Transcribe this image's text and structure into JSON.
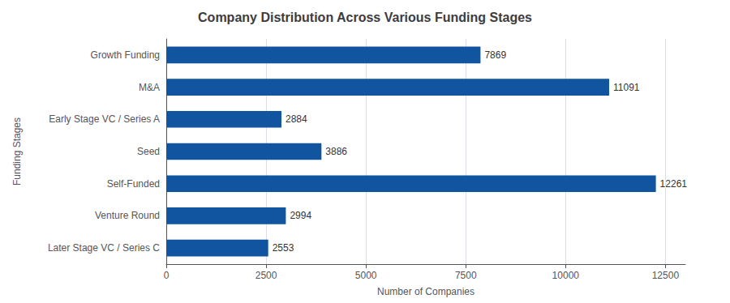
{
  "chart_data": {
    "type": "bar",
    "orientation": "horizontal",
    "title": "Company Distribution Across Various Funding Stages",
    "categories": [
      "Growth Funding",
      "M&A",
      "Early Stage VC / Series A",
      "Seed",
      "Self-Funded",
      "Venture Round",
      "Later Stage VC / Series C"
    ],
    "values": [
      7869,
      11091,
      2884,
      3886,
      12261,
      2994,
      2553
    ],
    "color": "#1155a0",
    "xlabel": "Number of Companies",
    "ylabel": "Funding Stages",
    "xlim": [
      0,
      13000
    ],
    "xticks": [
      0,
      2500,
      5000,
      7500,
      10000,
      12500
    ],
    "grid": true,
    "data_labels": true
  }
}
